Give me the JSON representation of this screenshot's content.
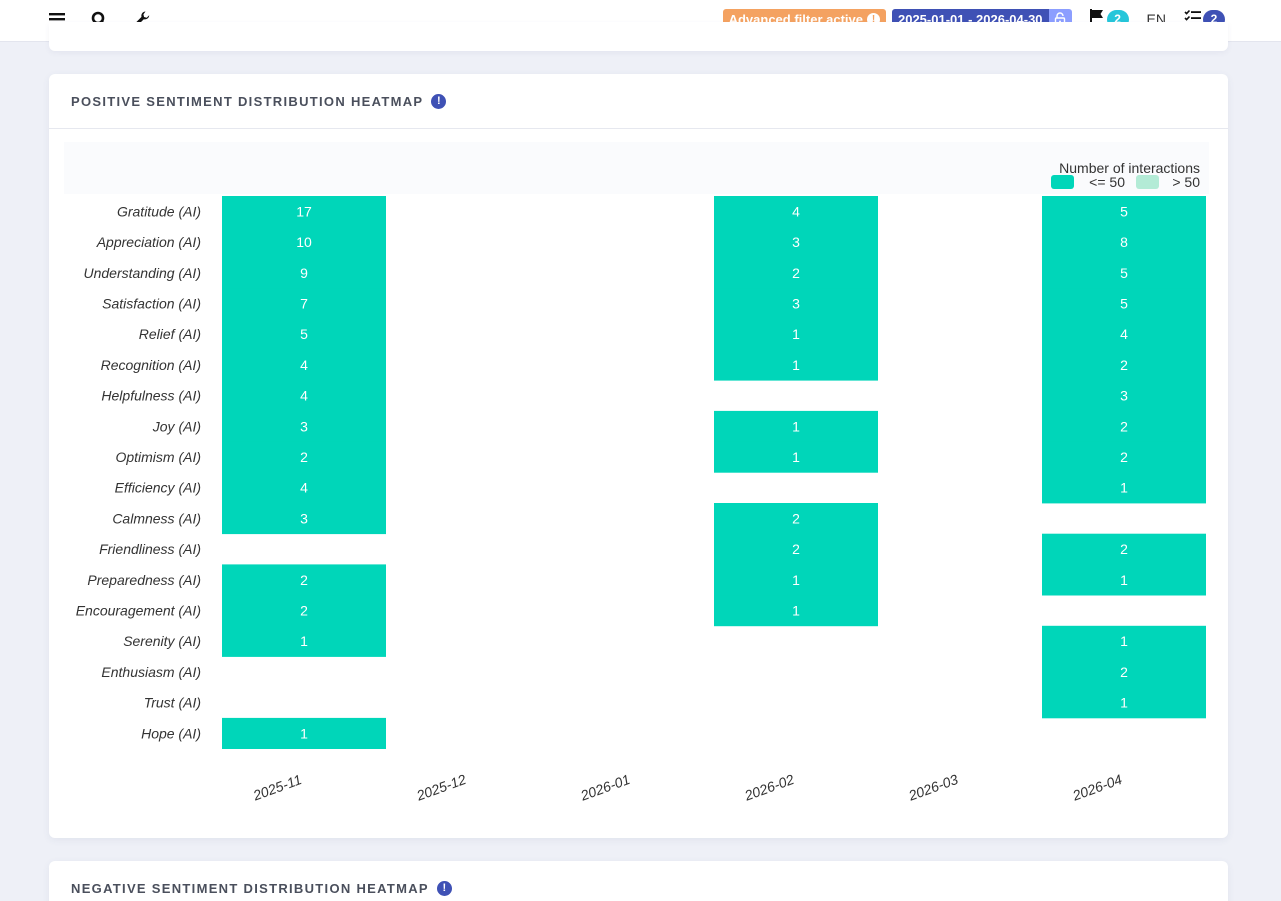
{
  "topbar": {
    "filter_label": "Advanced filter active",
    "filter_icon": "!",
    "date_range": "2025-01-01 - 2026-04-30",
    "flag_count": "2",
    "language": "EN",
    "tasks_count": "2",
    "icons": [
      "menu-icon",
      "search-icon",
      "wrench-icon",
      "lock-icon",
      "flag-icon",
      "tasks-icon"
    ]
  },
  "colors": {
    "accent": "#3f51b5",
    "filter": "#f4a261",
    "cell_low": "#00d6b9",
    "cell_high": "#b3ebd6"
  },
  "cards": {
    "positive_title": "POSITIVE SENTIMENT DISTRIBUTION HEATMAP",
    "negative_title": "NEGATIVE SENTIMENT DISTRIBUTION HEATMAP",
    "info_icon": "!"
  },
  "chart_data": {
    "type": "heatmap",
    "title": "",
    "legend_title": "Number of interactions",
    "legend": [
      {
        "label": "<= 50",
        "color": "#00d6b9"
      },
      {
        "label": "> 50",
        "color": "#b3ebd6"
      }
    ],
    "legend_position": "top-right",
    "x": [
      "2025-11",
      "2025-12",
      "2026-01",
      "2026-02",
      "2026-03",
      "2026-04"
    ],
    "y": [
      "Gratitude (AI)",
      "Appreciation (AI)",
      "Understanding (AI)",
      "Satisfaction (AI)",
      "Relief (AI)",
      "Recognition (AI)",
      "Helpfulness (AI)",
      "Joy (AI)",
      "Optimism (AI)",
      "Efficiency (AI)",
      "Calmness (AI)",
      "Friendliness (AI)",
      "Preparedness (AI)",
      "Encouragement (AI)",
      "Serenity (AI)",
      "Enthusiasm (AI)",
      "Trust (AI)",
      "Hope (AI)"
    ],
    "values": [
      [
        17,
        null,
        null,
        4,
        null,
        5
      ],
      [
        10,
        null,
        null,
        3,
        null,
        8
      ],
      [
        9,
        null,
        null,
        2,
        null,
        5
      ],
      [
        7,
        null,
        null,
        3,
        null,
        5
      ],
      [
        5,
        null,
        null,
        1,
        null,
        4
      ],
      [
        4,
        null,
        null,
        1,
        null,
        2
      ],
      [
        4,
        null,
        null,
        null,
        null,
        3
      ],
      [
        3,
        null,
        null,
        1,
        null,
        2
      ],
      [
        2,
        null,
        null,
        1,
        null,
        2
      ],
      [
        4,
        null,
        null,
        null,
        null,
        1
      ],
      [
        3,
        null,
        null,
        2,
        null,
        null
      ],
      [
        null,
        null,
        null,
        2,
        null,
        2
      ],
      [
        2,
        null,
        null,
        1,
        null,
        1
      ],
      [
        2,
        null,
        null,
        1,
        null,
        null
      ],
      [
        1,
        null,
        null,
        null,
        null,
        1
      ],
      [
        null,
        null,
        null,
        null,
        null,
        2
      ],
      [
        null,
        null,
        null,
        null,
        null,
        1
      ],
      [
        1,
        null,
        null,
        null,
        null,
        null
      ]
    ]
  }
}
